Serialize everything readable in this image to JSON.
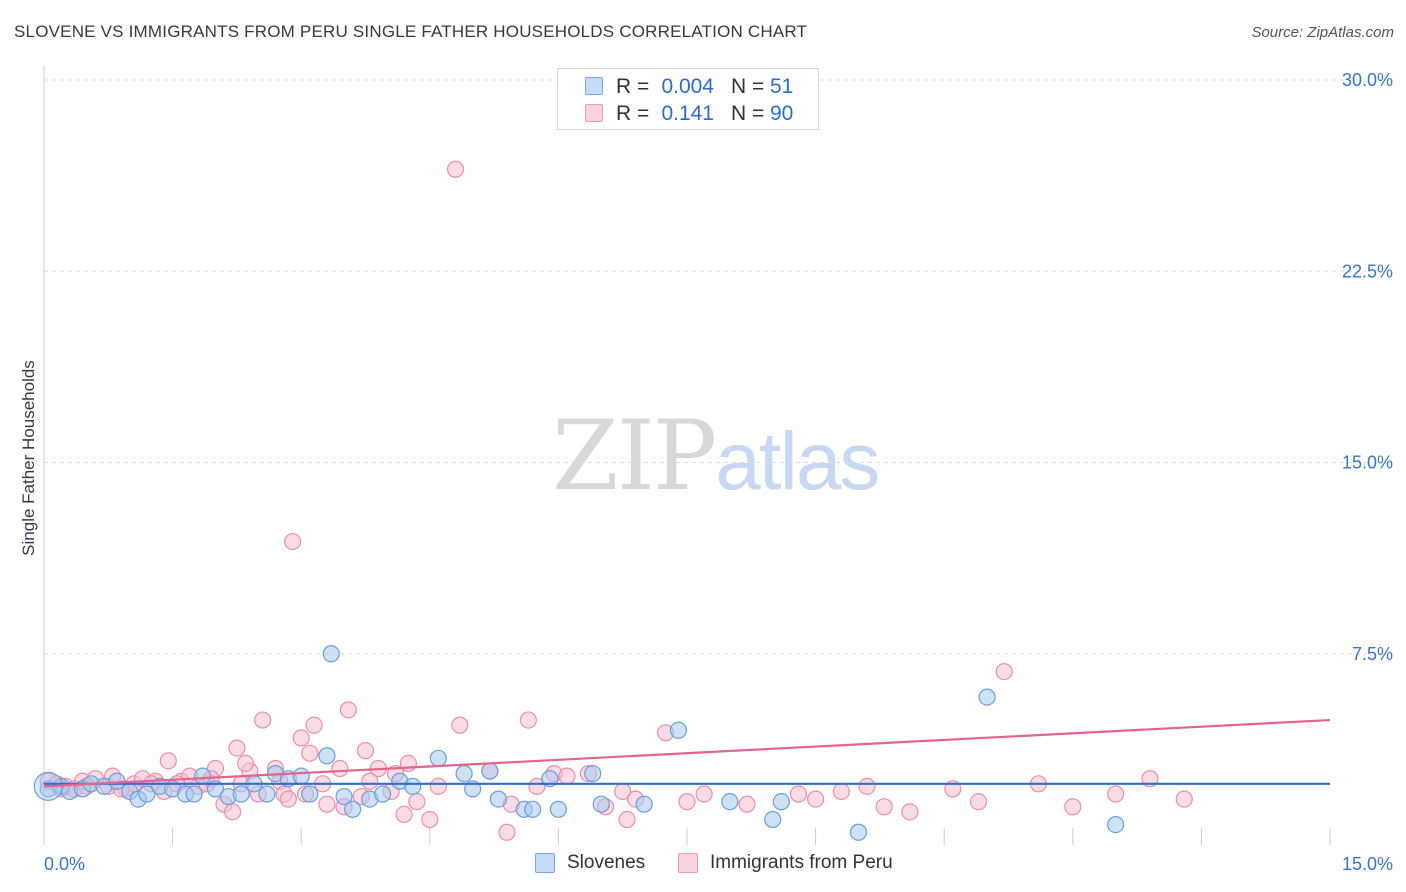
{
  "title": "SLOVENE VS IMMIGRANTS FROM PERU SINGLE FATHER HOUSEHOLDS CORRELATION CHART",
  "source": "Source: ZipAtlas.com",
  "watermark": {
    "zip": "ZIP",
    "atlas": "atlas"
  },
  "legend_stats": [
    {
      "r_label": "R =",
      "r_value": "0.004",
      "n_label": "N =",
      "n_value": "51",
      "color": "#a8c8f0"
    },
    {
      "r_label": "R =",
      "r_value": "0.141",
      "n_label": "N =",
      "n_value": "90",
      "color": "#f7b8cb"
    }
  ],
  "colors": {
    "blue_fill": "#a8c8f0",
    "blue_stroke": "#6a9fdc",
    "blue_line": "#2d6fd1",
    "pink_fill": "#f7c0d0",
    "pink_stroke": "#ec8eab",
    "pink_line": "#e3648f",
    "tick_label": "#3a74c8",
    "grid": "#dddddd"
  },
  "chart_data": {
    "type": "scatter",
    "title": "SLOVENE VS IMMIGRANTS FROM PERU SINGLE FATHER HOUSEHOLDS CORRELATION CHART",
    "xlabel": "",
    "ylabel": "Single Father Households",
    "xlim": [
      0,
      15
    ],
    "ylim": [
      0,
      30
    ],
    "x_tick_labels": [
      "0.0%",
      "15.0%"
    ],
    "y_ticks": [
      7.5,
      15.0,
      22.5,
      30.0
    ],
    "y_tick_labels": [
      "7.5%",
      "15.0%",
      "22.5%",
      "30.0%"
    ],
    "grid": true,
    "legend_position": "bottom",
    "series": [
      {
        "name": "Slovenes",
        "trend": [
          [
            0,
            2.4
          ],
          [
            15,
            2.4
          ]
        ],
        "points": [
          [
            0.05,
            2.2
          ],
          [
            0.2,
            2.3
          ],
          [
            0.3,
            2.1
          ],
          [
            0.45,
            2.2
          ],
          [
            0.55,
            2.4
          ],
          [
            0.7,
            2.3
          ],
          [
            0.85,
            2.5
          ],
          [
            1.0,
            2.1
          ],
          [
            1.1,
            1.8
          ],
          [
            1.2,
            2.0
          ],
          [
            1.35,
            2.3
          ],
          [
            1.5,
            2.2
          ],
          [
            1.65,
            2.0
          ],
          [
            1.75,
            2.0
          ],
          [
            1.85,
            2.7
          ],
          [
            2.0,
            2.2
          ],
          [
            2.15,
            1.9
          ],
          [
            2.3,
            2.0
          ],
          [
            2.45,
            2.4
          ],
          [
            2.6,
            2.0
          ],
          [
            2.7,
            2.8
          ],
          [
            2.85,
            2.6
          ],
          [
            3.0,
            2.7
          ],
          [
            3.1,
            2.0
          ],
          [
            3.3,
            3.5
          ],
          [
            3.35,
            7.5
          ],
          [
            3.5,
            1.9
          ],
          [
            3.6,
            1.4
          ],
          [
            3.8,
            1.8
          ],
          [
            3.95,
            2.0
          ],
          [
            4.15,
            2.5
          ],
          [
            4.3,
            2.3
          ],
          [
            4.6,
            3.4
          ],
          [
            4.9,
            2.8
          ],
          [
            5.0,
            2.2
          ],
          [
            5.2,
            2.9
          ],
          [
            5.3,
            1.8
          ],
          [
            5.6,
            1.4
          ],
          [
            5.7,
            1.4
          ],
          [
            5.9,
            2.6
          ],
          [
            6.0,
            1.4
          ],
          [
            6.4,
            2.8
          ],
          [
            6.5,
            1.6
          ],
          [
            7.0,
            1.6
          ],
          [
            7.4,
            4.5
          ],
          [
            8.0,
            1.7
          ],
          [
            8.5,
            1.0
          ],
          [
            8.6,
            1.7
          ],
          [
            9.5,
            0.5
          ],
          [
            11.0,
            5.8
          ],
          [
            12.5,
            0.8
          ]
        ]
      },
      {
        "name": "Immigrants from Peru",
        "trend": [
          [
            0,
            2.3
          ],
          [
            15,
            4.9
          ]
        ],
        "points": [
          [
            0.05,
            2.5
          ],
          [
            0.15,
            2.4
          ],
          [
            0.25,
            2.3
          ],
          [
            0.35,
            2.2
          ],
          [
            0.45,
            2.5
          ],
          [
            0.6,
            2.6
          ],
          [
            0.75,
            2.3
          ],
          [
            0.8,
            2.7
          ],
          [
            0.95,
            2.2
          ],
          [
            1.05,
            2.4
          ],
          [
            1.15,
            2.6
          ],
          [
            1.3,
            2.5
          ],
          [
            1.4,
            2.1
          ],
          [
            1.45,
            3.3
          ],
          [
            1.6,
            2.5
          ],
          [
            1.7,
            2.7
          ],
          [
            1.8,
            2.3
          ],
          [
            1.9,
            2.4
          ],
          [
            2.0,
            3.0
          ],
          [
            2.1,
            1.6
          ],
          [
            2.2,
            1.3
          ],
          [
            2.25,
            3.8
          ],
          [
            2.3,
            2.4
          ],
          [
            2.4,
            2.9
          ],
          [
            2.5,
            2.0
          ],
          [
            2.55,
            4.9
          ],
          [
            2.7,
            3.0
          ],
          [
            2.75,
            2.5
          ],
          [
            2.8,
            2.0
          ],
          [
            2.85,
            1.8
          ],
          [
            2.9,
            11.9
          ],
          [
            3.0,
            4.2
          ],
          [
            3.05,
            2.0
          ],
          [
            3.1,
            3.6
          ],
          [
            3.15,
            4.7
          ],
          [
            3.25,
            2.4
          ],
          [
            3.3,
            1.6
          ],
          [
            3.45,
            3.0
          ],
          [
            3.55,
            5.3
          ],
          [
            3.7,
            1.9
          ],
          [
            3.75,
            3.7
          ],
          [
            3.8,
            2.5
          ],
          [
            3.9,
            3.0
          ],
          [
            4.05,
            2.1
          ],
          [
            4.1,
            2.8
          ],
          [
            4.25,
            3.2
          ],
          [
            4.35,
            1.7
          ],
          [
            4.5,
            1.0
          ],
          [
            4.6,
            2.3
          ],
          [
            4.8,
            26.5
          ],
          [
            4.85,
            4.7
          ],
          [
            5.2,
            2.9
          ],
          [
            5.45,
            1.6
          ],
          [
            5.65,
            4.9
          ],
          [
            5.75,
            2.3
          ],
          [
            5.95,
            2.8
          ],
          [
            6.1,
            2.7
          ],
          [
            6.35,
            2.8
          ],
          [
            6.55,
            1.5
          ],
          [
            6.75,
            2.1
          ],
          [
            6.9,
            1.8
          ],
          [
            7.25,
            4.4
          ],
          [
            7.5,
            1.7
          ],
          [
            7.7,
            2.0
          ],
          [
            8.2,
            1.6
          ],
          [
            8.8,
            2.0
          ],
          [
            9.0,
            1.8
          ],
          [
            9.3,
            2.1
          ],
          [
            9.6,
            2.3
          ],
          [
            9.8,
            1.5
          ],
          [
            10.1,
            1.3
          ],
          [
            10.6,
            2.2
          ],
          [
            10.9,
            1.7
          ],
          [
            11.2,
            6.8
          ],
          [
            11.6,
            2.4
          ],
          [
            12.0,
            1.5
          ],
          [
            12.5,
            2.0
          ],
          [
            12.9,
            2.6
          ],
          [
            13.3,
            1.8
          ],
          [
            0.2,
            2.2
          ],
          [
            0.5,
            2.3
          ],
          [
            0.9,
            2.2
          ],
          [
            1.25,
            2.4
          ],
          [
            1.55,
            2.4
          ],
          [
            1.95,
            2.6
          ],
          [
            2.35,
            3.2
          ],
          [
            3.5,
            1.5
          ],
          [
            4.2,
            1.2
          ],
          [
            5.4,
            0.5
          ],
          [
            6.8,
            1.0
          ]
        ]
      }
    ]
  }
}
